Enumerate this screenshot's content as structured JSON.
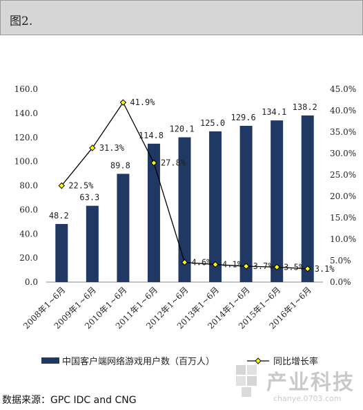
{
  "header": {
    "title": "图2."
  },
  "source": "数据来源：GPC IDC and CNG",
  "watermark": {
    "text": "产业科技",
    "url": "chanye.0703.com"
  },
  "colors": {
    "bar": "#1f3864",
    "line": "#000000",
    "marker": "#ffff00",
    "header_bg": "#d6d6d6"
  },
  "chart_data": {
    "type": "bar",
    "categories": [
      "2008年1~6月",
      "2009年1~6月",
      "2010年1~6月",
      "2011年1~6月",
      "2012年1~6月",
      "2013年1~6月",
      "2014年1~6月",
      "2015年1~6月",
      "2016年1~6月"
    ],
    "series": [
      {
        "name": "中国客户端网络游戏用户数（百万人）",
        "type": "bar",
        "axis": "left",
        "values": [
          48.2,
          63.3,
          89.8,
          114.8,
          120.1,
          125.0,
          129.6,
          134.1,
          138.2
        ],
        "labels": [
          "48.2",
          "63.3",
          "89.8",
          "114.8",
          "120.1",
          "125.0",
          "129.6",
          "134.1",
          "138.2"
        ]
      },
      {
        "name": "同比增长率",
        "type": "line",
        "axis": "right",
        "values": [
          22.5,
          31.3,
          41.9,
          27.8,
          4.6,
          4.1,
          3.7,
          3.5,
          3.1
        ],
        "labels": [
          "22.5%",
          "31.3%",
          "41.9%",
          "27.8%",
          "4.6%",
          "4.1%",
          "3.7%",
          "3.5%",
          "3.1%"
        ]
      }
    ],
    "y_left": {
      "lim": [
        0,
        160
      ],
      "ticks": [
        "0.0",
        "20.0",
        "40.0",
        "60.0",
        "80.0",
        "100.0",
        "120.0",
        "140.0",
        "160.0"
      ]
    },
    "y_right": {
      "lim": [
        0,
        45
      ],
      "ticks": [
        "0.0%",
        "5.0%",
        "10.0%",
        "15.0%",
        "20.0%",
        "25.0%",
        "30.0%",
        "35.0%",
        "40.0%",
        "45.0%"
      ]
    },
    "grid": false,
    "legend_position": "bottom"
  }
}
